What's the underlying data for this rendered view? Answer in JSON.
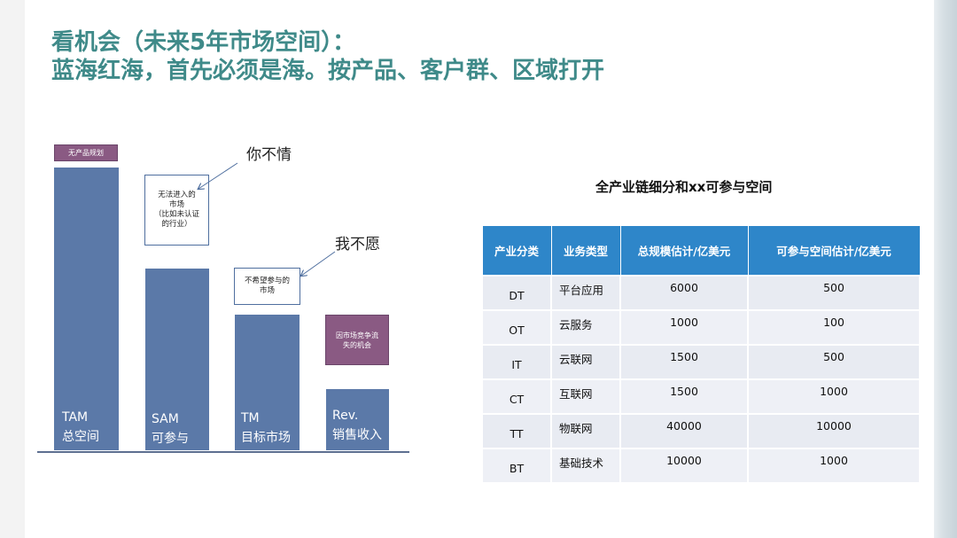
{
  "title": {
    "line1": "看机会（未来5年市场空间）：",
    "line2": "蓝海红海，首先必须是海。按产品、客户群、区域打开"
  },
  "diagram": {
    "bars": [
      {
        "en": "TAM",
        "zh": "总空间"
      },
      {
        "en": "SAM",
        "zh": "可参与"
      },
      {
        "en": "TM",
        "zh": "目标市场"
      },
      {
        "en": "Rev.",
        "zh": "销售收入"
      }
    ],
    "no_product_label": "无产品规划",
    "unreachable_box": [
      "无法进入的",
      "市场",
      "（比如未认证",
      "的行业）"
    ],
    "unwilling_box": [
      "不希望参与的",
      "市场"
    ],
    "lost_box": [
      "因市场竞争流",
      "失的机会"
    ],
    "callout_dont_want": "你不情",
    "callout_unwilling": "我不愿"
  },
  "table": {
    "title": "全产业链细分和xx可参与空间",
    "headers": [
      "产业分类",
      "业务类型",
      "总规模估计/亿美元",
      "可参与空间估计/亿美元"
    ],
    "rows": [
      [
        "DT",
        "平台应用",
        "6000",
        "500"
      ],
      [
        "OT",
        "云服务",
        "1000",
        "100"
      ],
      [
        "IT",
        "云联网",
        "1500",
        "500"
      ],
      [
        "CT",
        "互联网",
        "1500",
        "1000"
      ],
      [
        "TT",
        "物联网",
        "40000",
        "10000"
      ],
      [
        "BT",
        "基础技术",
        "10000",
        "1000"
      ]
    ]
  }
}
